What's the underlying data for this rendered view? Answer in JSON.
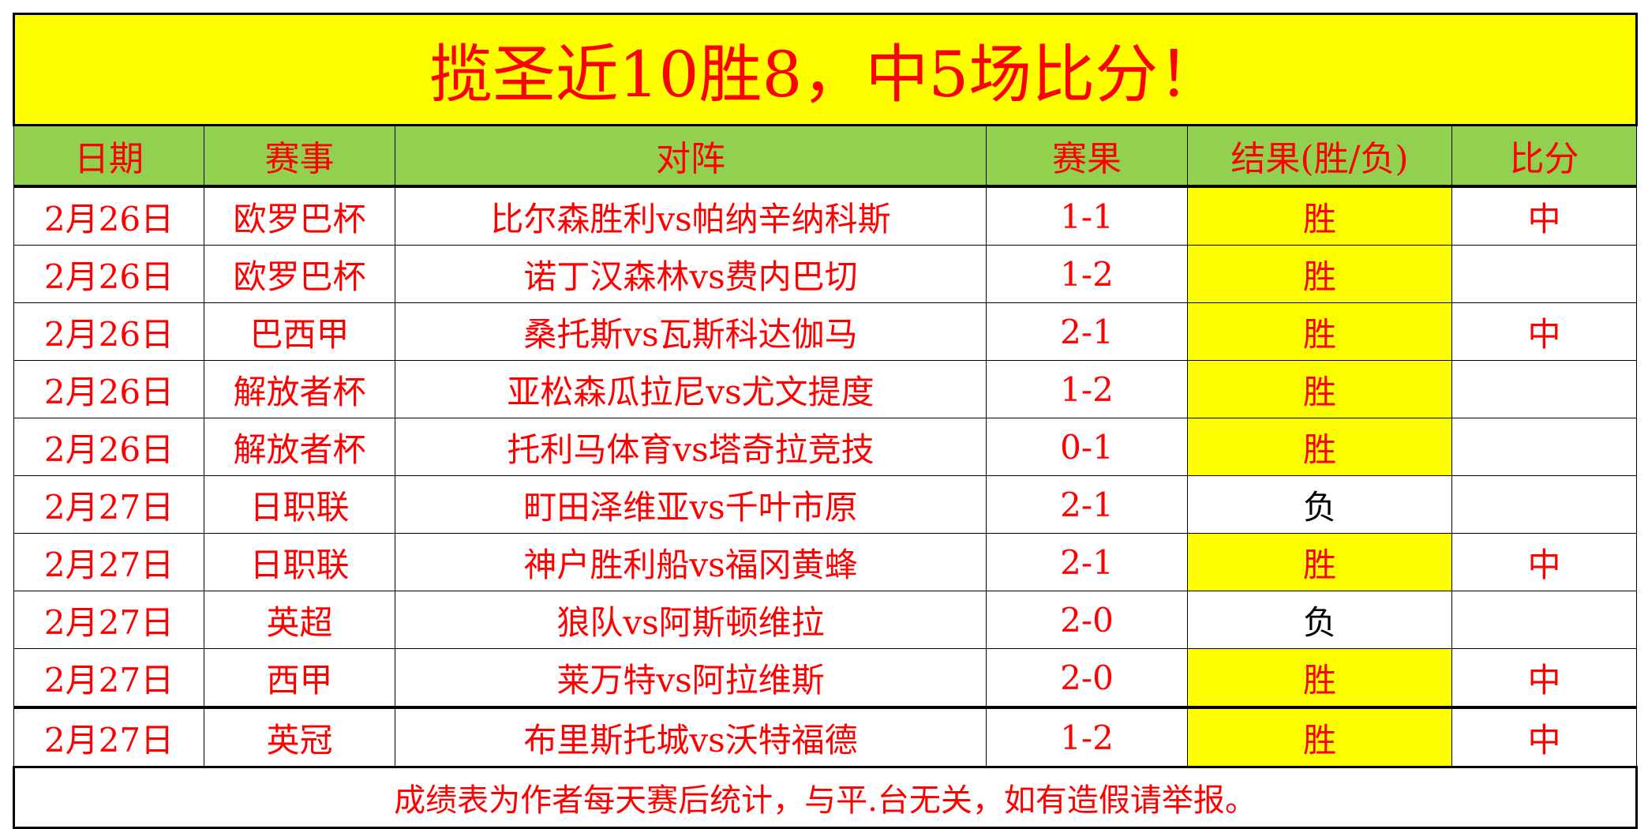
{
  "title": "揽圣近10胜8，中5场比分！",
  "headers": [
    "日期",
    "赛事",
    "对阵",
    "赛果",
    "结果(胜/负)",
    "比分"
  ],
  "rows": [
    {
      "date": "2月26日",
      "league": "欧罗巴杯",
      "match": "比尔森胜利vs帕纳辛纳科斯",
      "score": "1-1",
      "result": "胜",
      "hit": "中"
    },
    {
      "date": "2月26日",
      "league": "欧罗巴杯",
      "match": "诺丁汉森林vs费内巴切",
      "score": "1-2",
      "result": "胜",
      "hit": ""
    },
    {
      "date": "2月26日",
      "league": "巴西甲",
      "match": "桑托斯vs瓦斯科达伽马",
      "score": "2-1",
      "result": "胜",
      "hit": "中"
    },
    {
      "date": "2月26日",
      "league": "解放者杯",
      "match": "亚松森瓜拉尼vs尤文提度",
      "score": "1-2",
      "result": "胜",
      "hit": ""
    },
    {
      "date": "2月26日",
      "league": "解放者杯",
      "match": "托利马体育vs塔奇拉竞技",
      "score": "0-1",
      "result": "胜",
      "hit": ""
    },
    {
      "date": "2月27日",
      "league": "日职联",
      "match": "町田泽维亚vs千叶市原",
      "score": "2-1",
      "result": "负",
      "hit": ""
    },
    {
      "date": "2月27日",
      "league": "日职联",
      "match": "神户胜利船vs福冈黄蜂",
      "score": "2-1",
      "result": "胜",
      "hit": "中"
    },
    {
      "date": "2月27日",
      "league": "英超",
      "match": "狼队vs阿斯顿维拉",
      "score": "2-0",
      "result": "负",
      "hit": ""
    },
    {
      "date": "2月27日",
      "league": "西甲",
      "match": "莱万特vs阿拉维斯",
      "score": "2-0",
      "result": "胜",
      "hit": "中"
    },
    {
      "date": "2月27日",
      "league": "英冠",
      "match": "布里斯托城vs沃特福德",
      "score": "1-2",
      "result": "胜",
      "hit": "中"
    }
  ],
  "footer": "成绩表为作者每天赛后统计，与平.台无关，如有造假请举报。",
  "colors": {
    "title_bg": "#ffff00",
    "header_bg": "#92d050",
    "text": "#ff0000",
    "win_bg": "#ffff00"
  }
}
